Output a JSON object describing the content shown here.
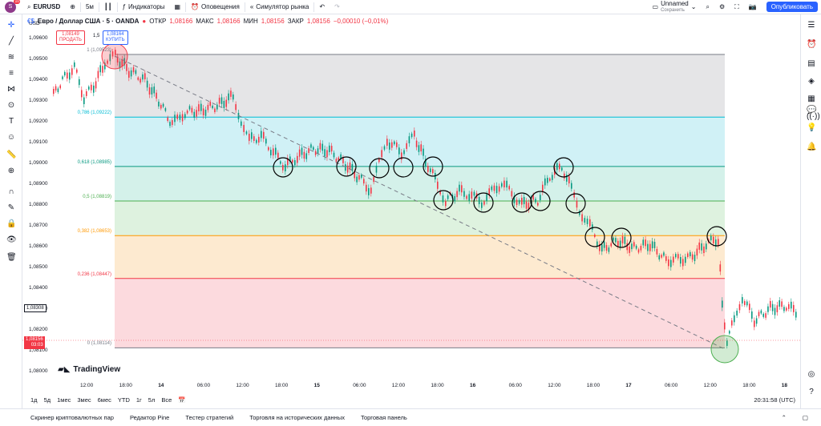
{
  "topbar": {
    "logo_badge": "10",
    "symbol": "EURUSD",
    "interval": "5м",
    "indicators": "Индикаторы",
    "alerts": "Оповещения",
    "replay": "Симулятор рынка",
    "layout_name": "Unnamed",
    "layout_status": "Сохранить",
    "publish": "Опубликовать"
  },
  "legend": {
    "title": "Евро / Доллар США · 5 · OANDA",
    "open_label": "ОТКР",
    "open": "1,08166",
    "high_label": "МАКС",
    "high": "1,08166",
    "low_label": "МИН",
    "low": "1,08156",
    "close_label": "ЗАКР",
    "close": "1,08156",
    "change": "−0,00010 (−0,01%)"
  },
  "trade": {
    "sell_price": "1,08149",
    "sell_label": "ПРОДАТЬ",
    "spread": "1,5",
    "buy_price": "1,08164",
    "buy_label": "КУПИТЬ"
  },
  "currency": "USD",
  "yaxis": [
    "1,09600",
    "1,09500",
    "1,09400",
    "1,09300",
    "1,09200",
    "1,09100",
    "1,09000",
    "1,08900",
    "1,08800",
    "1,08700",
    "1,08600",
    "1,08500",
    "1,08400",
    "1,08300",
    "1,08200",
    "1,08100",
    "1,08000"
  ],
  "price_tags": {
    "crosshair": "1,08308",
    "last_price": "1,08156",
    "countdown": "03:03"
  },
  "xaxis": [
    "12:00",
    "18:00",
    "14",
    "06:00",
    "12:00",
    "18:00",
    "15",
    "06:00",
    "12:00",
    "18:00",
    "16",
    "06:00",
    "12:00",
    "18:00",
    "17",
    "06:00",
    "12:00",
    "18:00",
    "18"
  ],
  "fib_levels": [
    {
      "label": "1 (1,09523)",
      "value": 1.09523,
      "color": "#787b86"
    },
    {
      "label": "0,786 (1,09222)",
      "value": 1.09222,
      "color": "#00bcd4"
    },
    {
      "label": "0,618 (1,08985)",
      "value": 1.08985,
      "color": "#089981"
    },
    {
      "label": "0,5 (1,08819)",
      "value": 1.08819,
      "color": "#4caf50"
    },
    {
      "label": "0,382 (1,08653)",
      "value": 1.08653,
      "color": "#ff9800"
    },
    {
      "label": "0,236 (1,08447)",
      "value": 1.08447,
      "color": "#f23645"
    },
    {
      "label": "0 (1,08114)",
      "value": 1.08114,
      "color": "#787b86"
    }
  ],
  "bottombar": {
    "ranges": [
      "1д",
      "5д",
      "1мес",
      "3мес",
      "6мес",
      "YTD",
      "1г",
      "5л",
      "Все"
    ],
    "clock": "20:31:58 (UTC)"
  },
  "footer": {
    "tabs": [
      "Скринер криптовалютных пар",
      "Редактор Pine",
      "Тестер стратегий",
      "Торговля на исторических данных",
      "Торговая панель"
    ]
  },
  "brand": "TradingView"
}
